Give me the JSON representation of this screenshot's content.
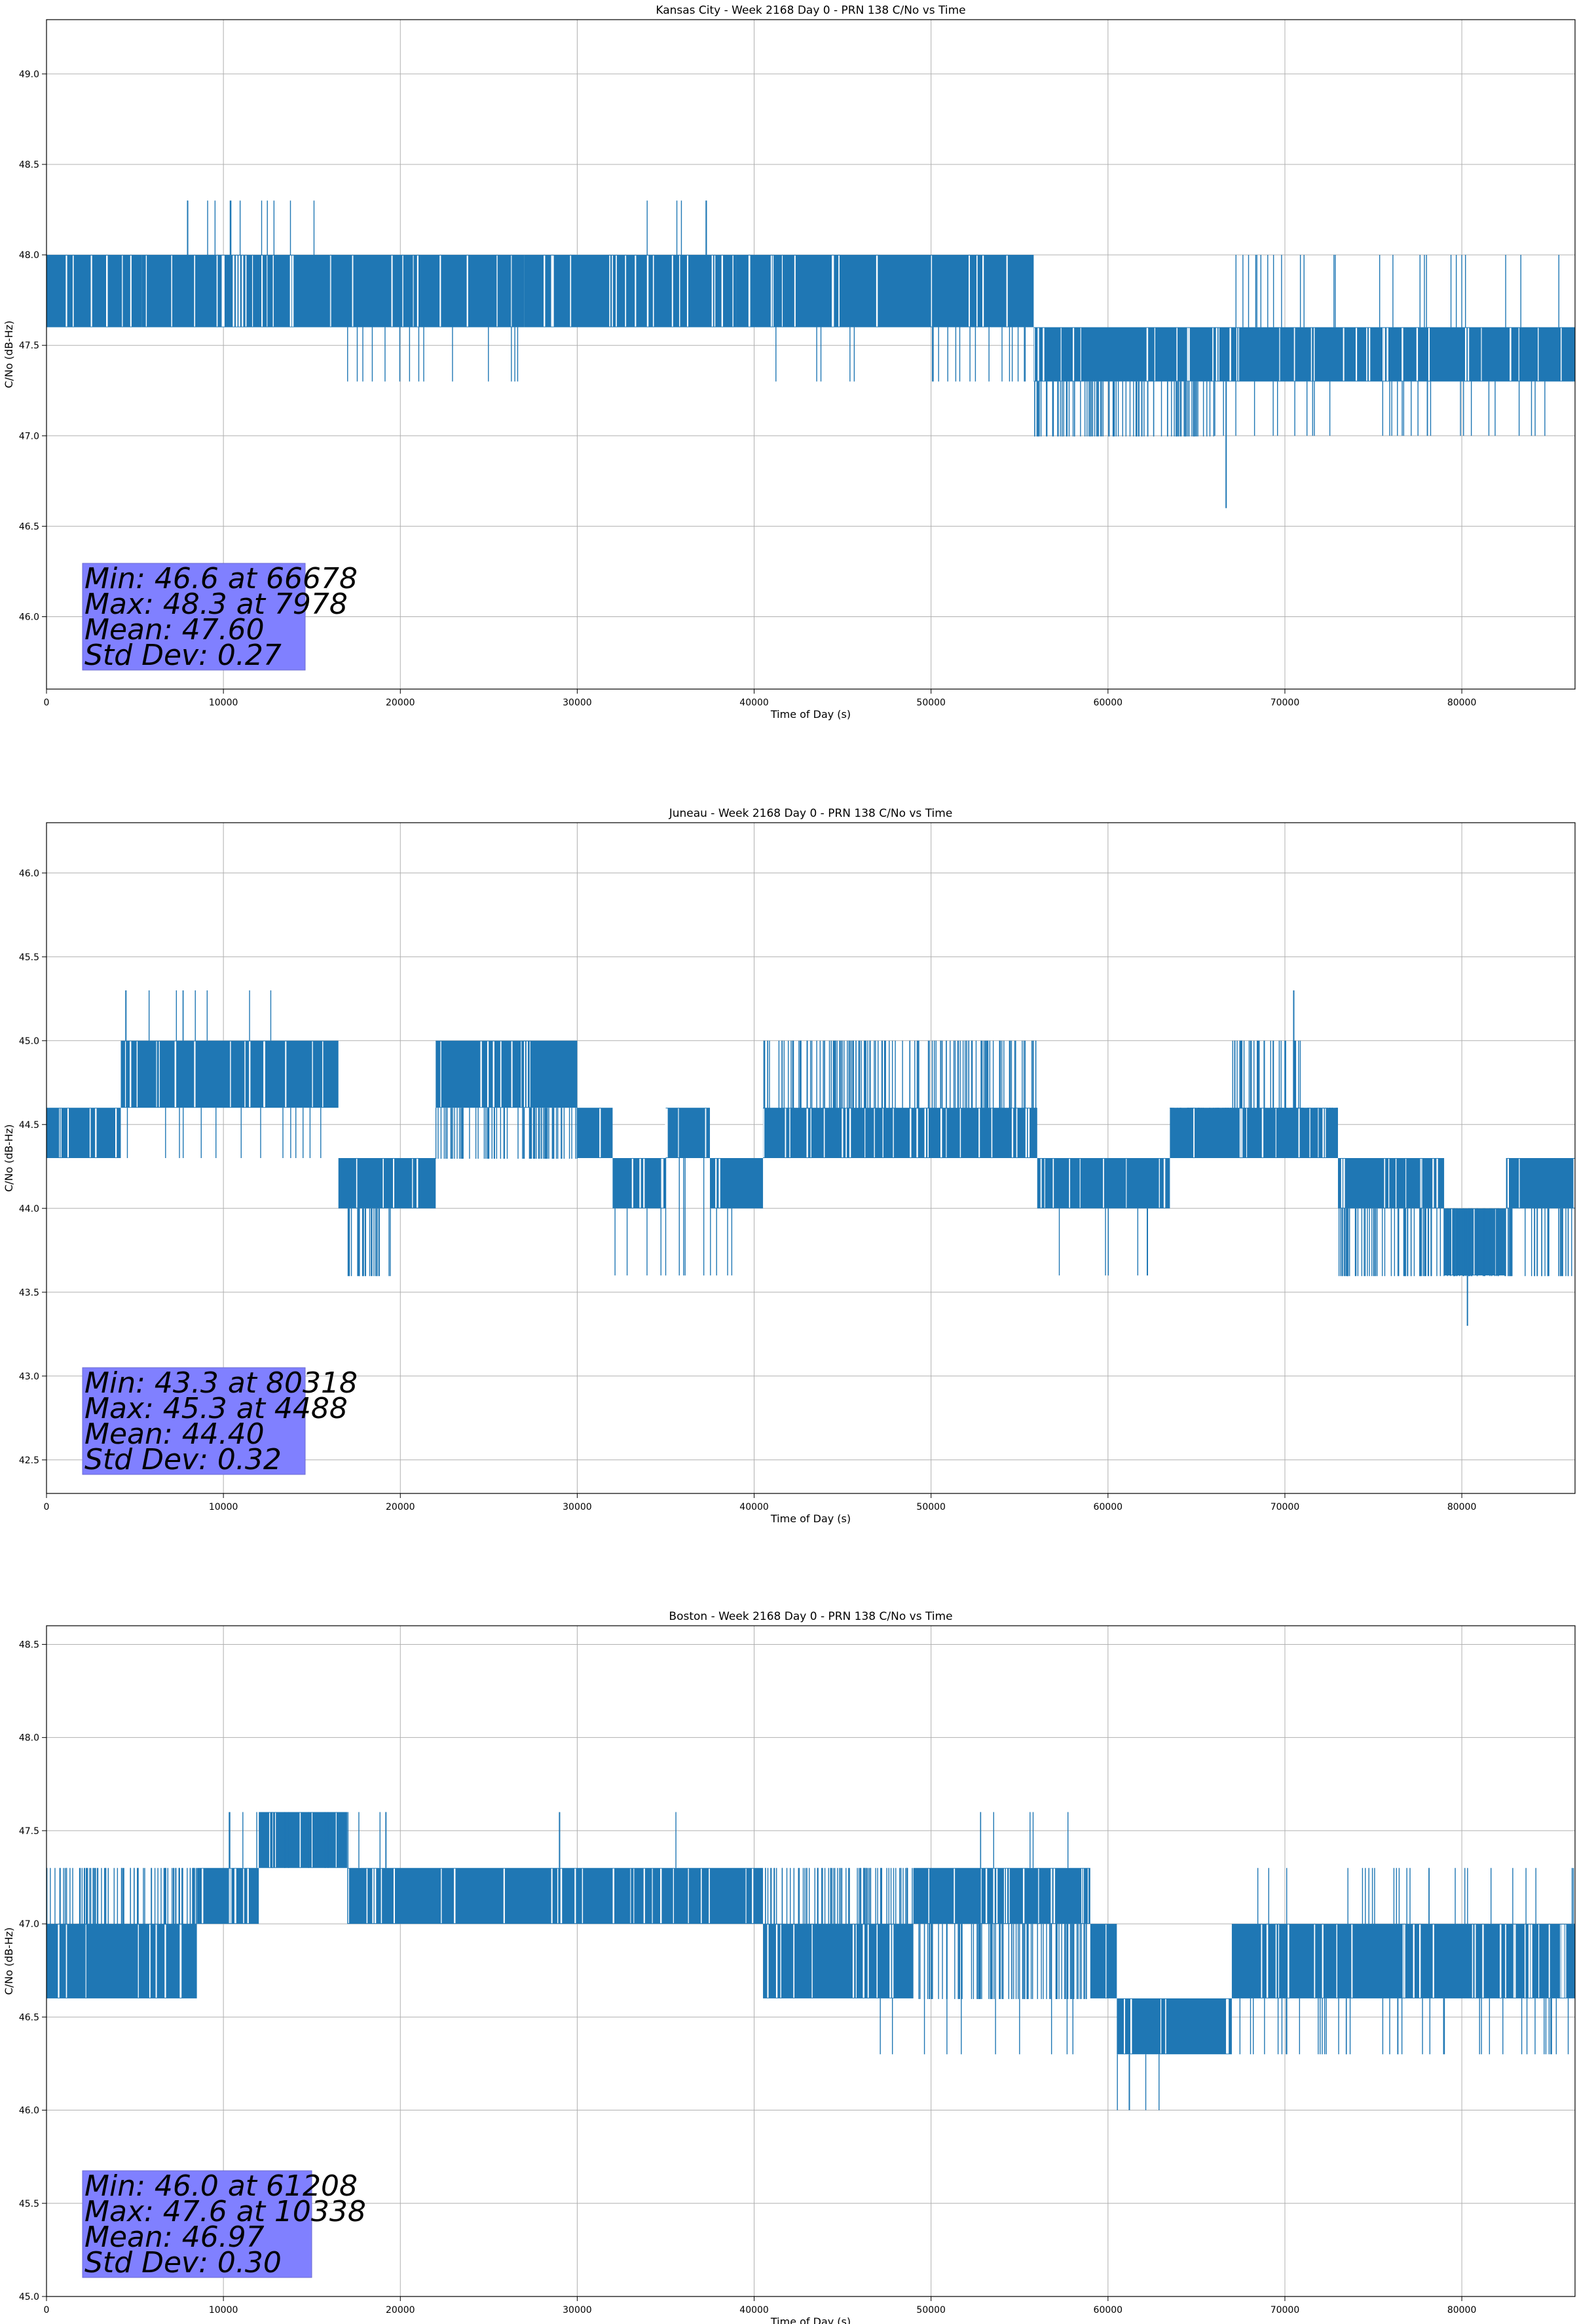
{
  "chart_data": [
    {
      "type": "line",
      "title": "Kansas City - Week 2168 Day 0 - PRN 138 C/No vs Time",
      "xlabel": "Time of Day (s)",
      "ylabel": "C/No (dB-Hz)",
      "xlim": [
        0,
        86400
      ],
      "ylim": [
        45.6,
        49.3
      ],
      "xticks": [
        0,
        10000,
        20000,
        30000,
        40000,
        50000,
        60000,
        70000,
        80000
      ],
      "yticks": [
        46.0,
        46.5,
        47.0,
        47.5,
        48.0,
        48.5,
        49.0
      ],
      "ytick_labels": [
        "46.0",
        "46.5",
        "47.0",
        "47.5",
        "48.0",
        "48.5",
        "49.0"
      ],
      "grid": true,
      "series_color": "#1f77b4",
      "band_segments": [
        {
          "x0": 0,
          "x1": 5400,
          "low": 47.6,
          "high": 48.0
        },
        {
          "x0": 5400,
          "x1": 16000,
          "low": 47.6,
          "high": 48.0
        },
        {
          "x0": 16000,
          "x1": 27000,
          "low": 47.6,
          "high": 48.0
        },
        {
          "x0": 27000,
          "x1": 39000,
          "low": 47.6,
          "high": 48.0
        },
        {
          "x0": 39000,
          "x1": 55800,
          "low": 47.6,
          "high": 48.0
        },
        {
          "x0": 55800,
          "x1": 66000,
          "low": 47.3,
          "high": 47.6
        },
        {
          "x0": 66000,
          "x1": 86400,
          "low": 47.3,
          "high": 47.6
        }
      ],
      "dense_spans": [
        {
          "x0": 55800,
          "x1": 66000,
          "low": 47.0,
          "high": 47.3
        }
      ],
      "spike_spans": [
        {
          "x0": 7000,
          "x1": 15200,
          "values": [
            48.3
          ]
        },
        {
          "x0": 32000,
          "x1": 37500,
          "values": [
            48.3
          ]
        },
        {
          "x0": 16000,
          "x1": 27500,
          "values": [
            47.3
          ]
        },
        {
          "x0": 40000,
          "x1": 55800,
          "values": [
            47.3
          ]
        },
        {
          "x0": 66000,
          "x1": 86400,
          "values": [
            47.0
          ]
        },
        {
          "x0": 67000,
          "x1": 86400,
          "values": [
            48.0
          ]
        }
      ],
      "point_spikes": [
        {
          "x": 66678,
          "value": 46.6
        },
        {
          "x": 7978,
          "value": 48.3
        }
      ],
      "stats": {
        "min_line": "Min: 46.6 at 66678",
        "max_line": "Max: 48.3 at 7978",
        "mean_line": "Mean: 47.60",
        "std_line": "Std Dev: 0.27"
      },
      "stats_box_color": "#8080ff"
    },
    {
      "type": "line",
      "title": "Juneau - Week 2168 Day 0 - PRN 138 C/No vs Time",
      "xlabel": "Time of Day (s)",
      "ylabel": "C/No (dB-Hz)",
      "xlim": [
        0,
        86400
      ],
      "ylim": [
        42.3,
        46.3
      ],
      "xticks": [
        0,
        10000,
        20000,
        30000,
        40000,
        50000,
        60000,
        70000,
        80000
      ],
      "yticks": [
        42.5,
        43.0,
        43.5,
        44.0,
        44.5,
        45.0,
        45.5,
        46.0
      ],
      "ytick_labels": [
        "42.5",
        "43.0",
        "43.5",
        "44.0",
        "44.5",
        "45.0",
        "45.5",
        "46.0"
      ],
      "grid": true,
      "series_color": "#1f77b4",
      "band_segments": [
        {
          "x0": 0,
          "x1": 4200,
          "low": 44.3,
          "high": 44.6
        },
        {
          "x0": 4200,
          "x1": 16500,
          "low": 44.6,
          "high": 45.0
        },
        {
          "x0": 16500,
          "x1": 22000,
          "low": 44.0,
          "high": 44.3
        },
        {
          "x0": 22000,
          "x1": 30000,
          "low": 44.6,
          "high": 45.0
        },
        {
          "x0": 30000,
          "x1": 32000,
          "low": 44.3,
          "high": 44.6
        },
        {
          "x0": 32000,
          "x1": 35000,
          "low": 44.0,
          "high": 44.3
        },
        {
          "x0": 35000,
          "x1": 37500,
          "low": 44.3,
          "high": 44.6
        },
        {
          "x0": 37500,
          "x1": 40500,
          "low": 44.0,
          "high": 44.3
        },
        {
          "x0": 40500,
          "x1": 56000,
          "low": 44.3,
          "high": 44.6
        },
        {
          "x0": 56000,
          "x1": 63500,
          "low": 44.0,
          "high": 44.3
        },
        {
          "x0": 63500,
          "x1": 73000,
          "low": 44.3,
          "high": 44.6
        },
        {
          "x0": 73000,
          "x1": 79000,
          "low": 44.0,
          "high": 44.3
        },
        {
          "x0": 79000,
          "x1": 82500,
          "low": 43.6,
          "high": 44.0
        },
        {
          "x0": 82500,
          "x1": 86400,
          "low": 44.0,
          "high": 44.3
        }
      ],
      "dense_spans": [
        {
          "x0": 16800,
          "x1": 19500,
          "low": 43.6,
          "high": 44.0
        },
        {
          "x0": 22000,
          "x1": 30000,
          "low": 44.3,
          "high": 44.6
        },
        {
          "x0": 40500,
          "x1": 56000,
          "low": 44.6,
          "high": 45.0
        },
        {
          "x0": 67000,
          "x1": 71000,
          "low": 44.6,
          "high": 45.0
        },
        {
          "x0": 63500,
          "x1": 73000,
          "low": 44.6,
          "high": 44.6
        },
        {
          "x0": 73000,
          "x1": 86400,
          "low": 43.6,
          "high": 44.0
        }
      ],
      "spike_spans": [
        {
          "x0": 5000,
          "x1": 14000,
          "values": [
            45.3
          ]
        },
        {
          "x0": 0,
          "x1": 16500,
          "values": [
            44.3
          ]
        },
        {
          "x0": 57000,
          "x1": 63000,
          "values": [
            43.6
          ]
        },
        {
          "x0": 32000,
          "x1": 40000,
          "values": [
            43.6
          ]
        },
        {
          "x0": 63500,
          "x1": 73000,
          "values": [
            44.3
          ]
        }
      ],
      "point_spikes": [
        {
          "x": 80318,
          "value": 43.3
        },
        {
          "x": 4488,
          "value": 45.3
        },
        {
          "x": 70500,
          "value": 45.3
        }
      ],
      "stats": {
        "min_line": "Min: 43.3 at 80318",
        "max_line": "Max: 45.3 at 4488",
        "mean_line": "Mean: 44.40",
        "std_line": "Std Dev: 0.32"
      },
      "stats_box_color": "#8080ff"
    },
    {
      "type": "line",
      "title": "Boston - Week 2168 Day 0 - PRN 138 C/No vs Time",
      "xlabel": "Time of Day (s)",
      "ylabel": "C/No (dB-Hz)",
      "xlim": [
        0,
        86400
      ],
      "ylim": [
        45.0,
        48.6
      ],
      "xticks": [
        0,
        10000,
        20000,
        30000,
        40000,
        50000,
        60000,
        70000,
        80000
      ],
      "yticks": [
        45.0,
        45.5,
        46.0,
        46.5,
        47.0,
        47.5,
        48.0,
        48.5
      ],
      "ytick_labels": [
        "45.0",
        "45.5",
        "46.0",
        "46.5",
        "47.0",
        "47.5",
        "48.0",
        "48.5"
      ],
      "grid": true,
      "series_color": "#1f77b4",
      "band_segments": [
        {
          "x0": 0,
          "x1": 8500,
          "low": 46.6,
          "high": 47.0
        },
        {
          "x0": 8500,
          "x1": 12000,
          "low": 47.0,
          "high": 47.3
        },
        {
          "x0": 12000,
          "x1": 17000,
          "low": 47.3,
          "high": 47.6
        },
        {
          "x0": 17000,
          "x1": 40500,
          "low": 47.0,
          "high": 47.3
        },
        {
          "x0": 40500,
          "x1": 49000,
          "low": 46.6,
          "high": 47.0
        },
        {
          "x0": 49000,
          "x1": 59000,
          "low": 47.0,
          "high": 47.3
        },
        {
          "x0": 59000,
          "x1": 60500,
          "low": 46.6,
          "high": 47.0
        },
        {
          "x0": 60500,
          "x1": 67000,
          "low": 46.3,
          "high": 46.6
        },
        {
          "x0": 67000,
          "x1": 86400,
          "low": 46.6,
          "high": 47.0
        }
      ],
      "dense_spans": [
        {
          "x0": 0,
          "x1": 8500,
          "low": 47.0,
          "high": 47.3
        },
        {
          "x0": 49000,
          "x1": 59000,
          "low": 46.6,
          "high": 47.0
        },
        {
          "x0": 40500,
          "x1": 49000,
          "low": 47.0,
          "high": 47.3
        }
      ],
      "spike_spans": [
        {
          "x0": 10000,
          "x1": 20000,
          "values": [
            47.6
          ]
        },
        {
          "x0": 35000,
          "x1": 37500,
          "values": [
            47.6
          ]
        },
        {
          "x0": 52000,
          "x1": 58000,
          "values": [
            47.6
          ]
        },
        {
          "x0": 60500,
          "x1": 65000,
          "values": [
            46.0
          ]
        },
        {
          "x0": 47000,
          "x1": 86400,
          "values": [
            46.3
          ]
        },
        {
          "x0": 67000,
          "x1": 86400,
          "values": [
            47.3
          ]
        }
      ],
      "point_spikes": [
        {
          "x": 61208,
          "value": 46.0
        },
        {
          "x": 10338,
          "value": 47.6
        },
        {
          "x": 29000,
          "value": 47.6
        }
      ],
      "stats": {
        "min_line": "Min: 46.0 at 61208",
        "max_line": "Max: 47.6 at 10338",
        "mean_line": "Mean: 46.97",
        "std_line": "Std Dev: 0.30"
      },
      "stats_box_color": "#8080ff"
    }
  ]
}
